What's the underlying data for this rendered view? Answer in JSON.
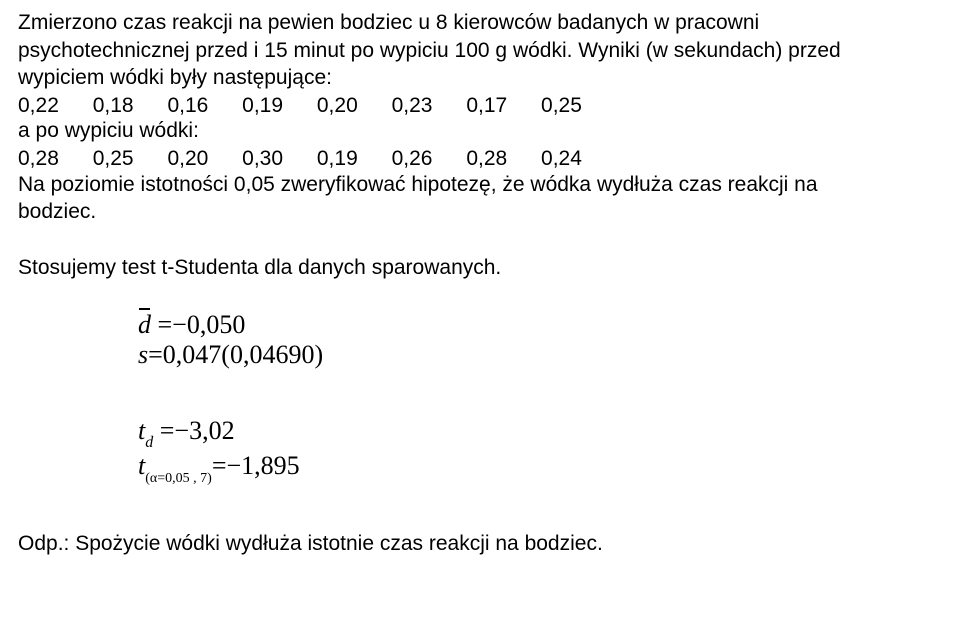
{
  "intro_line1": "Zmierzono czas reakcji na pewien bodziec u 8 kierowców badanych w pracowni",
  "intro_line2": "psychotechnicznej przed i 15 minut po wypiciu 100 g wódki. Wyniki (w sekundach) przed",
  "intro_line3": "wypiciem wódki były następujące:",
  "before_values": [
    "0,22",
    "0,18",
    "0,16",
    "0,19",
    "0,20",
    "0,23",
    "0,17",
    "0,25"
  ],
  "after_label": "a po wypiciu wódki:",
  "after_values": [
    "0,28",
    "0,25",
    "0,20",
    "0,30",
    "0,19",
    "0,26",
    "0,28",
    "0,24"
  ],
  "hyp_line1": "Na poziomie istotności 0,05 zweryfikować hipotezę, że wódka wydłuża czas reakcji na",
  "hyp_line2": "bodziec.",
  "method_line": "Stosujemy test t-Studenta dla danych sparowanych.",
  "math": {
    "dbar_val": "−0,050",
    "s_expr": "0,047(0,04690)",
    "td_val": "−3,02",
    "tcrit_val": "−1,895",
    "alpha": "0,05",
    "df": "7"
  },
  "conclusion": "Odp.: Spożycie wódki wydłuża istotnie czas reakcji na bodziec."
}
